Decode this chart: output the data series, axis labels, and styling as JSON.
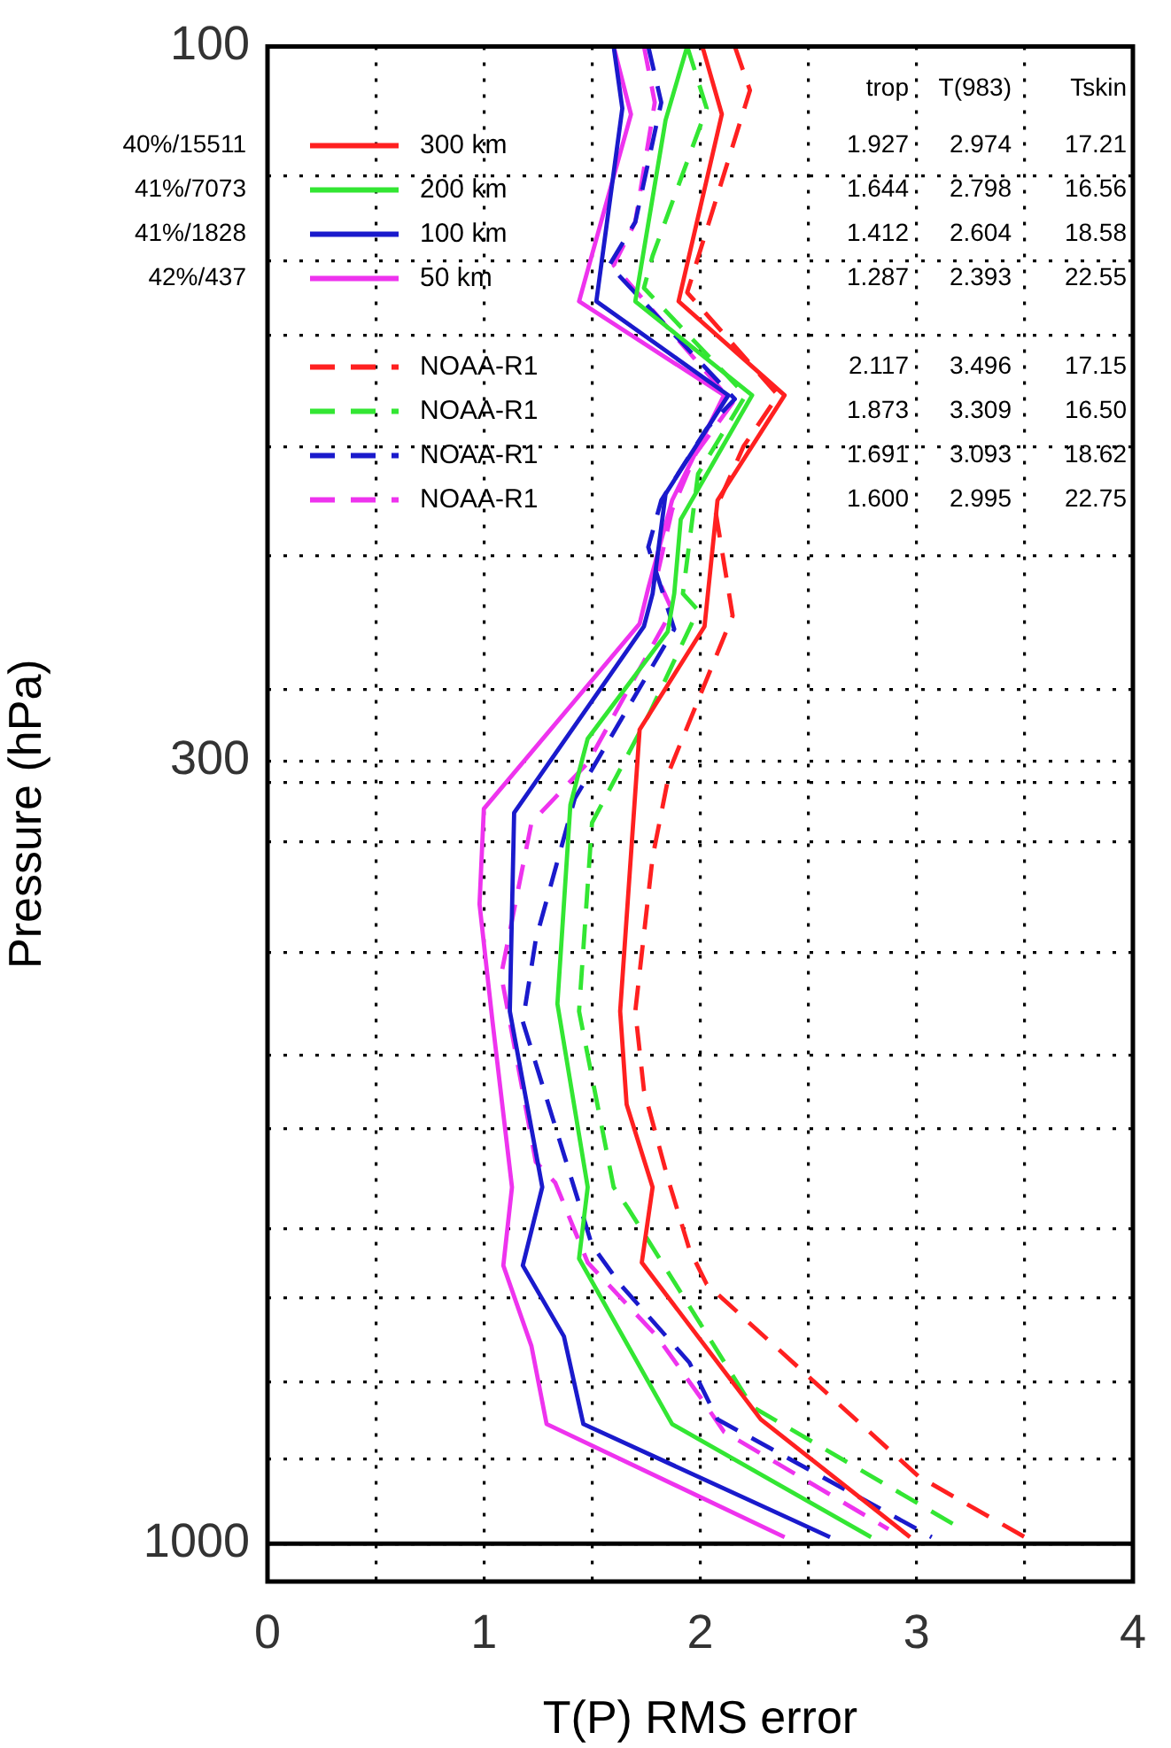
{
  "chart_data": {
    "type": "line",
    "xlabel": "T(P) RMS error",
    "ylabel": "Pressure (hPa)",
    "xlim": [
      0,
      4
    ],
    "xticks": [
      0,
      {
        "value": 0.5,
        "label": null
      },
      1,
      {
        "value": 1.5,
        "label": null
      },
      2,
      {
        "value": 2.5,
        "label": null
      },
      3,
      {
        "value": 3.5,
        "label": null
      },
      4
    ],
    "ylim": [
      1060,
      100
    ],
    "log": "y",
    "yticks": [
      100,
      {
        "value": 122,
        "label": null
      },
      {
        "value": 139,
        "label": null
      },
      {
        "value": 156,
        "label": null
      },
      {
        "value": 185,
        "label": null
      },
      {
        "value": 219,
        "label": null
      },
      {
        "value": 269,
        "label": null
      },
      300,
      {
        "value": 310,
        "label": null
      },
      {
        "value": 340,
        "label": null
      },
      {
        "value": 403,
        "label": null
      },
      {
        "value": 472,
        "label": null
      },
      {
        "value": 528,
        "label": null
      },
      {
        "value": 616,
        "label": null
      },
      {
        "value": 685,
        "label": null
      },
      {
        "value": 780,
        "label": null
      },
      {
        "value": 878,
        "label": null
      },
      1000
    ],
    "grid": true,
    "legend": "top left",
    "marker": "none",
    "ref_lines": [
      {
        "axis": "y",
        "value": 1000,
        "color": "#000000"
      }
    ],
    "series": [
      {
        "name": "300 km",
        "color": "#ff2020",
        "line_style": "solid",
        "x": [
          2.01,
          2.1,
          1.9,
          2.39,
          2.08,
          2.02,
          1.72,
          1.63,
          1.66,
          1.78,
          1.73,
          2.28,
          2.97
        ],
        "values": [
          100,
          111,
          148,
          171,
          201,
          244,
          286,
          441,
          509,
          578,
          649,
          826,
          990
        ]
      },
      {
        "name": "200 km",
        "color": "#33e633",
        "line_style": "solid",
        "x": [
          1.94,
          1.84,
          1.7,
          2.24,
          1.91,
          1.88,
          1.85,
          1.48,
          1.4,
          1.34,
          1.48,
          1.44,
          1.87,
          2.79
        ],
        "values": [
          100,
          112,
          148,
          171,
          207,
          232,
          246,
          290,
          321,
          436,
          578,
          645,
          832,
          990
        ]
      },
      {
        "name": "100 km",
        "color": "#1a1acc",
        "line_style": "solid",
        "x": [
          1.6,
          1.64,
          1.52,
          2.13,
          1.84,
          1.78,
          1.74,
          1.14,
          1.12,
          1.27,
          1.18,
          1.37,
          1.46,
          2.6
        ],
        "values": [
          100,
          110,
          148,
          171,
          199,
          232,
          244,
          325,
          441,
          578,
          652,
          727,
          832,
          990
        ]
      },
      {
        "name": "50 km",
        "color": "#ee33ee",
        "line_style": "solid",
        "x": [
          1.6,
          1.68,
          1.44,
          2.11,
          1.87,
          1.76,
          1.72,
          1.0,
          0.98,
          1.04,
          1.13,
          1.09,
          1.22,
          1.29,
          2.39
        ],
        "values": [
          100,
          111,
          148,
          171,
          201,
          230,
          243,
          323,
          374,
          448,
          578,
          652,
          738,
          832,
          990
        ]
      },
      {
        "name": "NOAA-R1",
        "color": "#ff2020",
        "line_style": "dashed",
        "x": [
          2.16,
          2.23,
          1.94,
          2.36,
          2.2,
          2.07,
          2.15,
          1.86,
          1.78,
          1.7,
          1.74,
          1.85,
          1.95,
          2.03,
          3.01,
          3.5
        ],
        "values": [
          100,
          107,
          146,
          171,
          185,
          204,
          240,
          304,
          348,
          441,
          498,
          570,
          636,
          671,
          902,
          990
        ]
      },
      {
        "name": "NOAA-R1",
        "color": "#33e633",
        "line_style": "dashed",
        "x": [
          1.94,
          2.03,
          1.78,
          1.74,
          2.21,
          1.99,
          1.92,
          1.99,
          1.76,
          1.5,
          1.44,
          1.6,
          1.67,
          2.24,
          3.21
        ],
        "values": [
          100,
          110,
          138,
          145,
          171,
          193,
          232,
          238,
          280,
          330,
          441,
          578,
          598,
          810,
          978
        ]
      },
      {
        "name": "NOAA-R1",
        "color": "#1a1acc",
        "line_style": "dashed",
        "x": [
          1.76,
          1.82,
          1.7,
          1.58,
          2.16,
          2.03,
          1.82,
          1.76,
          1.88,
          1.42,
          1.24,
          1.18,
          1.42,
          1.5,
          1.63,
          1.95,
          2.08,
          3.07
        ],
        "values": [
          100,
          109,
          131,
          140,
          172,
          180,
          201,
          216,
          245,
          318,
          395,
          448,
          580,
          632,
          671,
          757,
          826,
          990
        ]
      },
      {
        "name": "NOAA-R1",
        "color": "#ee33ee",
        "line_style": "dashed",
        "x": [
          1.74,
          1.79,
          1.7,
          1.6,
          2.15,
          1.98,
          1.87,
          1.8,
          1.87,
          1.48,
          1.22,
          1.08,
          1.24,
          1.33,
          1.48,
          1.8,
          2.0,
          2.11,
          2.87
        ],
        "values": [
          100,
          109,
          131,
          140,
          173,
          187,
          204,
          226,
          238,
          301,
          330,
          417,
          556,
          574,
          649,
          727,
          798,
          842,
          978
        ]
      }
    ],
    "annotations": [
      "40%/15511",
      "41%/7073",
      "41%/1828",
      "42%/437",
      "trop",
      "T(983)",
      "Tskin",
      "1.927",
      "2.974",
      "17.21",
      "1.644",
      "2.798",
      "16.56",
      "1.412",
      "2.604",
      "18.58",
      "1.287",
      "2.393",
      "22.55",
      "2.117",
      "3.496",
      "17.15",
      "1.873",
      "3.309",
      "16.50",
      "1.691",
      "3.093",
      "18.62",
      "1.600",
      "2.995",
      "22.75"
    ]
  }
}
